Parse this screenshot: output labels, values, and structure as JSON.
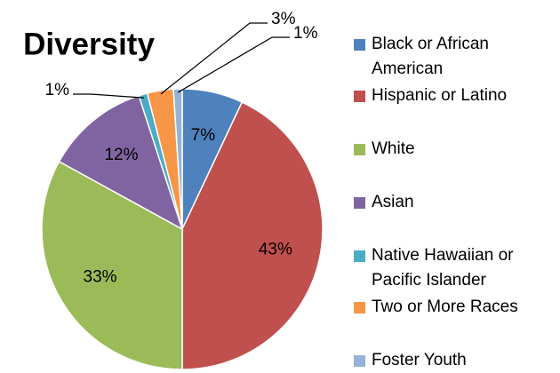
{
  "chart_data": {
    "type": "pie",
    "title": "Diversity",
    "categories": [
      "Black or African American",
      "Hispanic or Latino",
      "White",
      "Asian",
      "Native Hawaiian or Pacific Islander",
      "Two or More Races",
      "Foster Youth"
    ],
    "values": [
      7,
      43,
      33,
      12,
      1,
      3,
      1
    ],
    "value_labels": [
      "7%",
      "43%",
      "33%",
      "12%",
      "1%",
      "3%",
      "1%"
    ],
    "colors": [
      "#4f81bd",
      "#c0504d",
      "#9bbb59",
      "#8064a2",
      "#4bacc6",
      "#f79646",
      "#95b3d7"
    ],
    "legend": "right"
  }
}
